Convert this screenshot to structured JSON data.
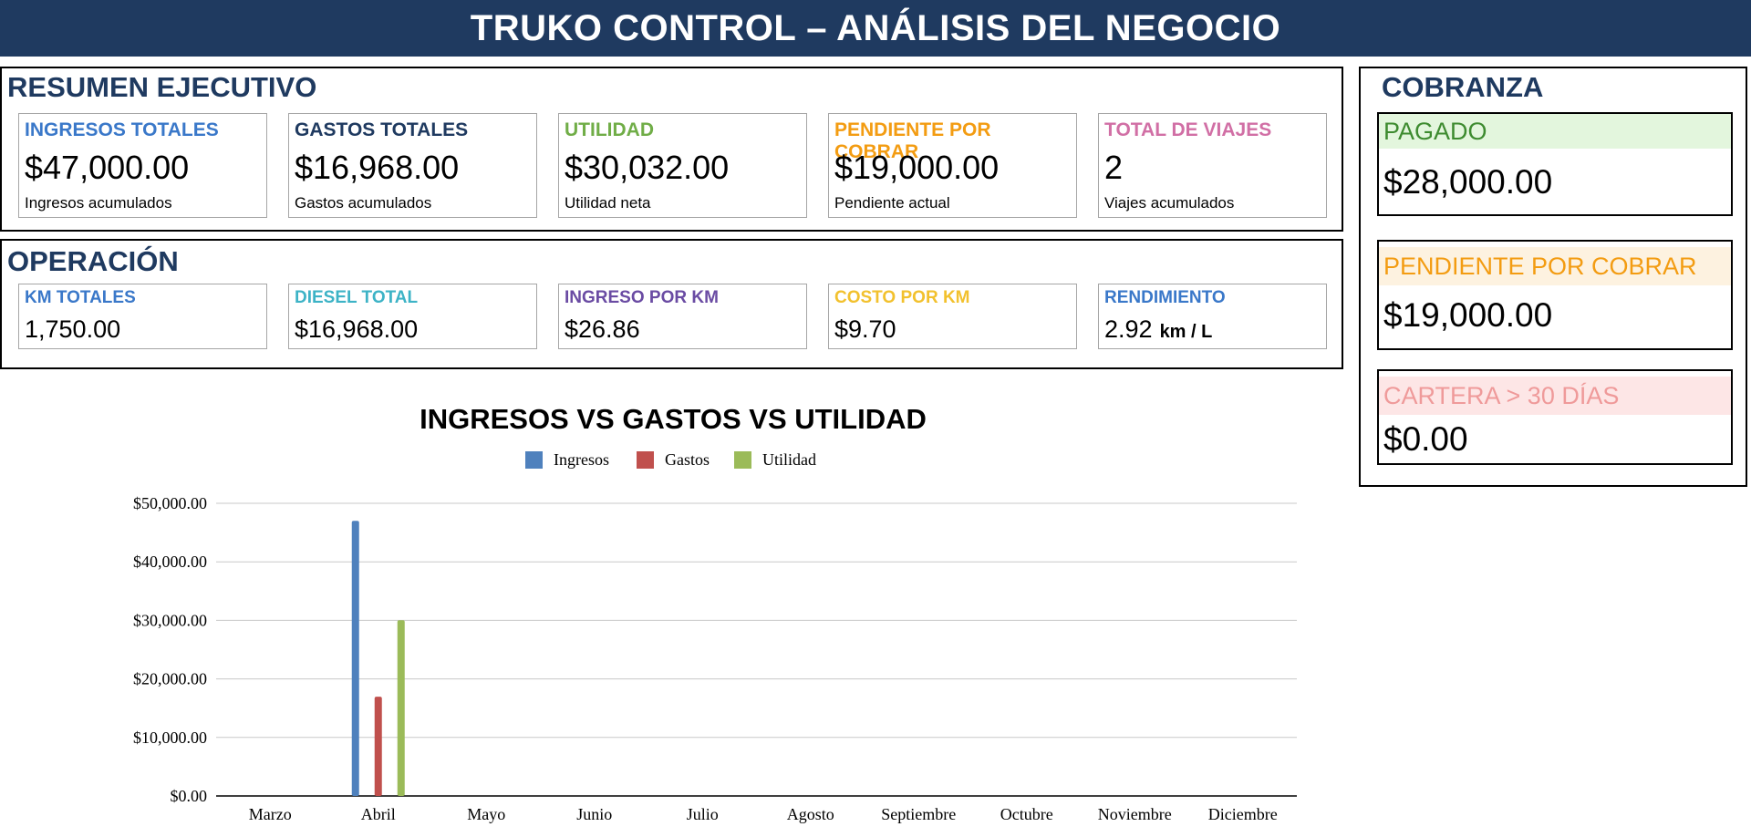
{
  "header": {
    "title": "TRUKO CONTROL – ANÁLISIS DEL NEGOCIO"
  },
  "resumen": {
    "title": "RESUMEN EJECUTIVO",
    "cards": [
      {
        "label": "INGRESOS TOTALES",
        "value": "$47,000.00",
        "sub": "Ingresos acumulados",
        "color": "#3a78c9"
      },
      {
        "label": "GASTOS TOTALES",
        "value": "$16,968.00",
        "sub": "Gastos acumulados",
        "color": "#1f3a60"
      },
      {
        "label": "UTILIDAD",
        "value": "$30,032.00",
        "sub": "Utilidad neta",
        "color": "#70ad47"
      },
      {
        "label": "PENDIENTE POR COBRAR",
        "value": "$19,000.00",
        "sub": "Pendiente actual",
        "color": "#f39c12"
      },
      {
        "label": "TOTAL DE VIAJES",
        "value": "2",
        "sub": "Viajes acumulados",
        "color": "#d16fa5"
      }
    ]
  },
  "operacion": {
    "title": "OPERACIÓN",
    "cards": [
      {
        "label": "KM TOTALES",
        "value": "1,750.00",
        "color": "#3a78c9"
      },
      {
        "label": "DIESEL TOTAL",
        "value": "$16,968.00",
        "color": "#3db3c6"
      },
      {
        "label": "INGRESO POR KM",
        "value": "$26.86",
        "color": "#6a4ba3"
      },
      {
        "label": "COSTO POR KM",
        "value": "$9.70",
        "color": "#f2c12e"
      },
      {
        "label": "RENDIMIENTO",
        "value": "2.92",
        "unit": "km / L",
        "color": "#3a78c9"
      }
    ]
  },
  "cobranza": {
    "title": "COBRANZA",
    "cards": [
      {
        "label": "PAGADO",
        "value": "$28,000.00",
        "color": "#3d8b2f",
        "bg": "#e3f6dd"
      },
      {
        "label": "PENDIENTE POR COBRAR",
        "value": "$19,000.00",
        "color": "#f39c12",
        "bg": "#fdf2e0"
      },
      {
        "label": "CARTERA > 30 DÍAS",
        "value": "$0.00",
        "color": "#ef9a9a",
        "bg": "#fde6e6"
      }
    ]
  },
  "chart_data": {
    "type": "bar",
    "title": "INGRESOS VS GASTOS VS UTILIDAD",
    "categories": [
      "Marzo",
      "Abril",
      "Mayo",
      "Junio",
      "Julio",
      "Agosto",
      "Septiembre",
      "Octubre",
      "Noviembre",
      "Diciembre"
    ],
    "series": [
      {
        "name": "Ingresos",
        "color": "#4f81bd",
        "values": [
          0,
          47000,
          0,
          0,
          0,
          0,
          0,
          0,
          0,
          0
        ]
      },
      {
        "name": "Gastos",
        "color": "#c0504d",
        "values": [
          0,
          16968,
          0,
          0,
          0,
          0,
          0,
          0,
          0,
          0
        ]
      },
      {
        "name": "Utilidad",
        "color": "#9bbb59",
        "values": [
          0,
          30032,
          0,
          0,
          0,
          0,
          0,
          0,
          0,
          0
        ]
      }
    ],
    "yticks": [
      "$0.00",
      "$10,000.00",
      "$20,000.00",
      "$30,000.00",
      "$40,000.00",
      "$50,000.00"
    ],
    "ylim": [
      0,
      50000
    ],
    "grid": true,
    "legend": "top"
  }
}
